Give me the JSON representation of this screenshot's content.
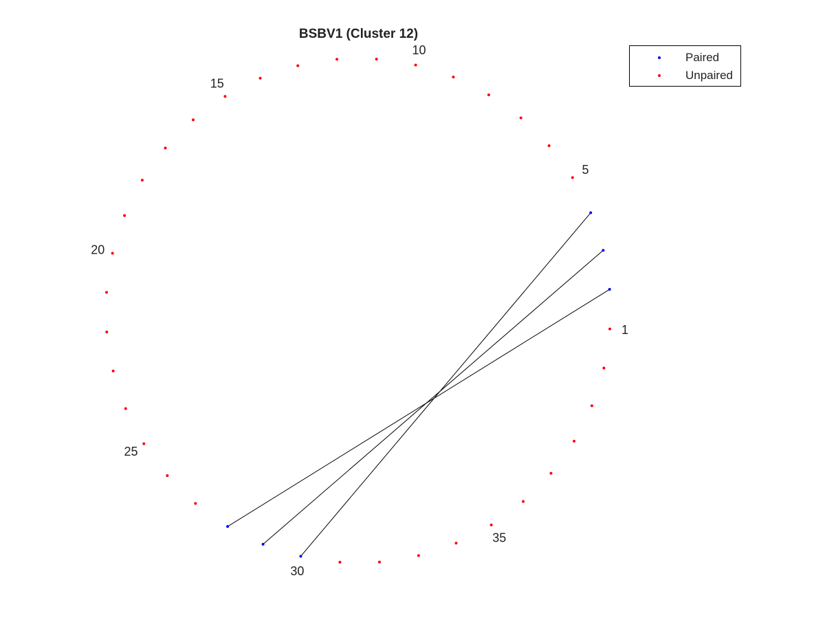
{
  "title": "BSBV1 (Cluster 12)",
  "legend": {
    "placement": "top-right",
    "items": [
      {
        "label": "Paired",
        "color": "#0000ff"
      },
      {
        "label": "Unpaired",
        "color": "#ff0000"
      }
    ]
  },
  "diagram": {
    "type": "circular-pairing-plot",
    "n_positions": 40,
    "numbering": "counter-clockwise",
    "paired_color": "#0000ff",
    "unpaired_color": "#ff0000",
    "arc_color": "#000000",
    "pairs": [
      [
        2,
        28
      ],
      [
        3,
        29
      ],
      [
        4,
        30
      ]
    ],
    "position_labels": [
      {
        "pos": 1,
        "text": "1"
      },
      {
        "pos": 5,
        "text": "5"
      },
      {
        "pos": 10,
        "text": "10"
      },
      {
        "pos": 15,
        "text": "15"
      },
      {
        "pos": 20,
        "text": "20"
      },
      {
        "pos": 25,
        "text": "25"
      },
      {
        "pos": 30,
        "text": "30"
      },
      {
        "pos": 35,
        "text": "35"
      }
    ]
  }
}
